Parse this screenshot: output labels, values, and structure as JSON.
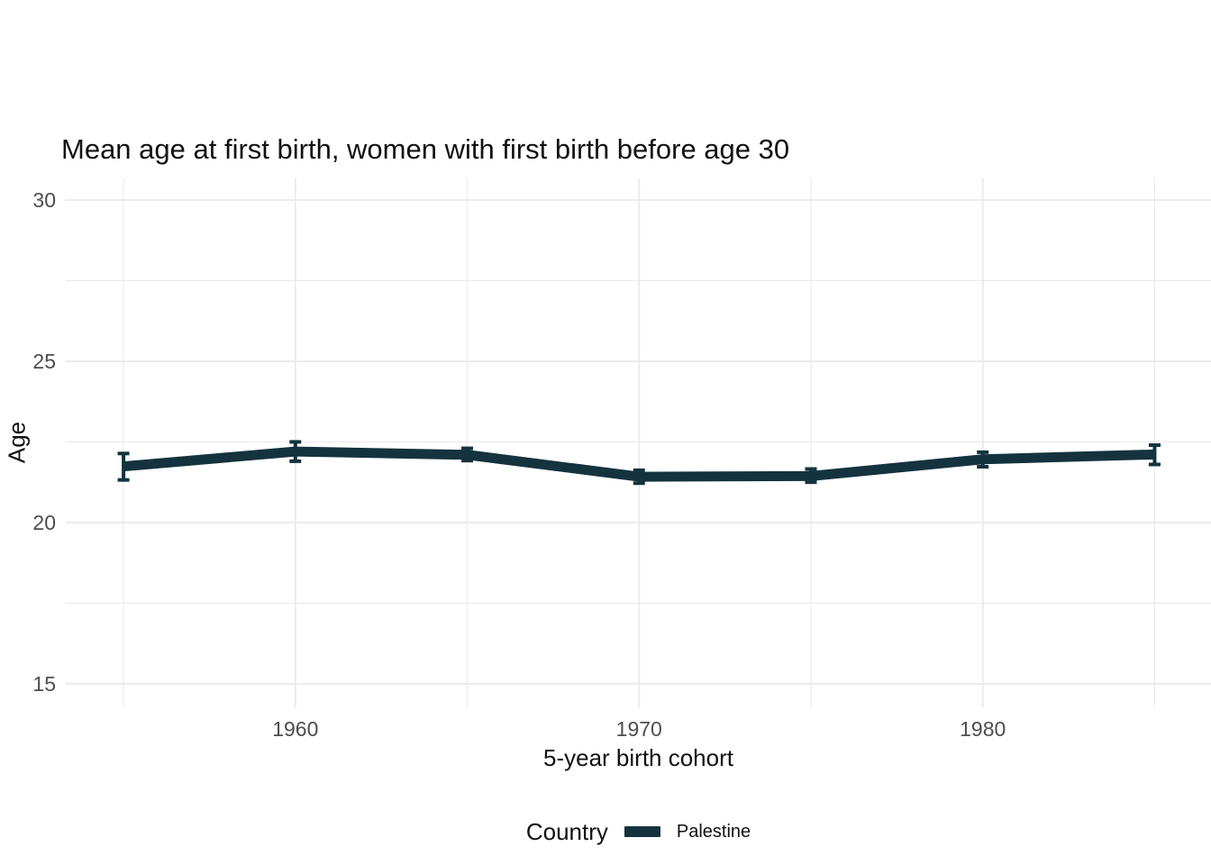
{
  "title": "Mean age at first birth, women with first birth before age 30",
  "chart_data": {
    "type": "line",
    "title": "Mean age at first birth, women with first birth before age 30",
    "xlabel": "5-year birth cohort",
    "ylabel": "Age",
    "x": [
      1955,
      1960,
      1965,
      1970,
      1975,
      1980,
      1985
    ],
    "series": [
      {
        "name": "Palestine",
        "values": [
          21.74,
          22.2,
          22.1,
          21.42,
          21.44,
          21.96,
          22.11
        ],
        "ci_low": [
          21.32,
          21.9,
          21.92,
          21.22,
          21.25,
          21.73,
          21.8
        ],
        "ci_high": [
          22.14,
          22.5,
          22.3,
          21.62,
          21.66,
          22.18,
          22.4
        ],
        "color": "#14333e"
      }
    ],
    "x_ticks": [
      1960,
      1970,
      1980
    ],
    "x_minor_ticks": [
      1955,
      1965,
      1975,
      1985
    ],
    "y_ticks": [
      15,
      20,
      25,
      30
    ],
    "y_minor_ticks": [
      17.5,
      22.5,
      27.5
    ],
    "xlim": [
      1953.32,
      1986.64
    ],
    "ylim": [
      14.27,
      30.67
    ],
    "grid": true,
    "legend_position": "bottom",
    "legend_title": "Country"
  },
  "legend": {
    "title": "Country",
    "items": [
      {
        "label": "Palestine",
        "color": "#14333e"
      }
    ]
  },
  "colors": {
    "background": "#ffffff",
    "grid_major": "#ebebeb",
    "grid_minor": "#ebebeb",
    "tick_label": "#4d4d4d",
    "text": "#111111",
    "line": "#14333e"
  }
}
